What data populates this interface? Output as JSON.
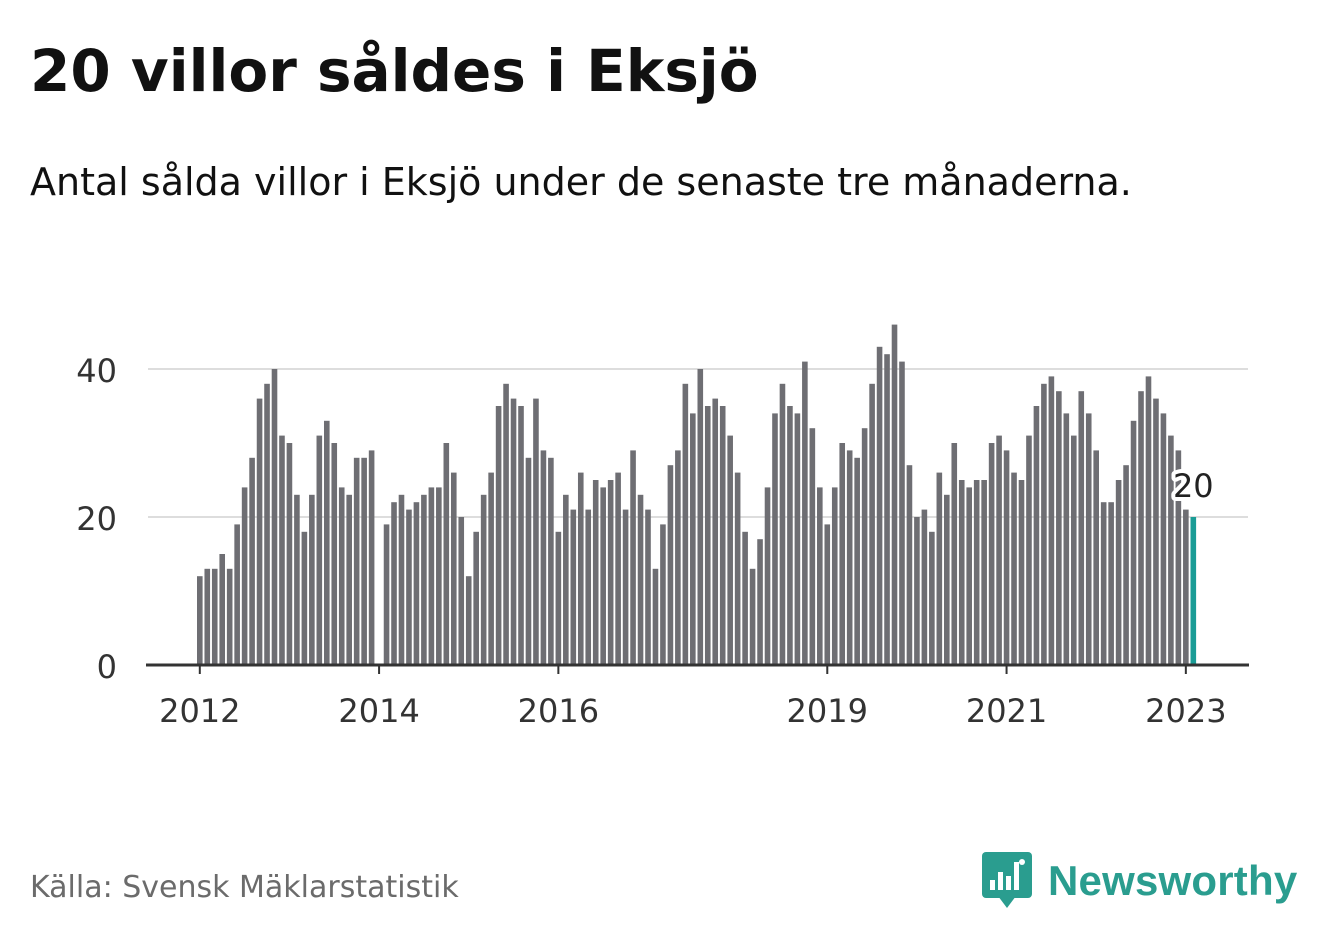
{
  "title": "20 villor såldes i Eksjö",
  "subtitle": "Antal sålda villor i Eksjö under de senaste tre månaderna.",
  "source": "Källa: Svensk Mäklarstatistik",
  "brand": "Newsworthy",
  "colors": {
    "bar": "#6e6e73",
    "highlight": "#1a9c96",
    "grid": "#dddddd",
    "axis": "#333333",
    "brand": "#2a9d8f"
  },
  "chart_data": {
    "type": "bar",
    "title": "20 villor såldes i Eksjö",
    "xlabel": "",
    "ylabel": "",
    "ylim": [
      0,
      50
    ],
    "yticks": [
      0,
      20,
      40
    ],
    "start": "2012-01",
    "xtick_labels": [
      "2012",
      "2014",
      "2016",
      "2019",
      "2021",
      "2023"
    ],
    "values": [
      12,
      13,
      13,
      15,
      13,
      19,
      24,
      28,
      36,
      38,
      40,
      31,
      30,
      23,
      18,
      23,
      31,
      33,
      30,
      24,
      23,
      28,
      28,
      29,
      0,
      19,
      22,
      23,
      21,
      22,
      23,
      24,
      24,
      30,
      26,
      20,
      12,
      18,
      23,
      26,
      35,
      38,
      36,
      35,
      28,
      36,
      29,
      28,
      18,
      23,
      21,
      26,
      21,
      25,
      24,
      25,
      26,
      21,
      29,
      23,
      21,
      13,
      19,
      27,
      29,
      38,
      34,
      40,
      35,
      36,
      35,
      31,
      26,
      18,
      13,
      17,
      24,
      34,
      38,
      35,
      34,
      41,
      32,
      24,
      19,
      24,
      30,
      29,
      28,
      32,
      38,
      43,
      42,
      46,
      41,
      27,
      20,
      21,
      18,
      26,
      23,
      30,
      25,
      24,
      25,
      25,
      30,
      31,
      29,
      26,
      25,
      31,
      35,
      38,
      39,
      37,
      34,
      31,
      37,
      34,
      29,
      22,
      22,
      25,
      27,
      33,
      37,
      39,
      36,
      34,
      31,
      29,
      21,
      20
    ],
    "highlight_label": "20"
  }
}
